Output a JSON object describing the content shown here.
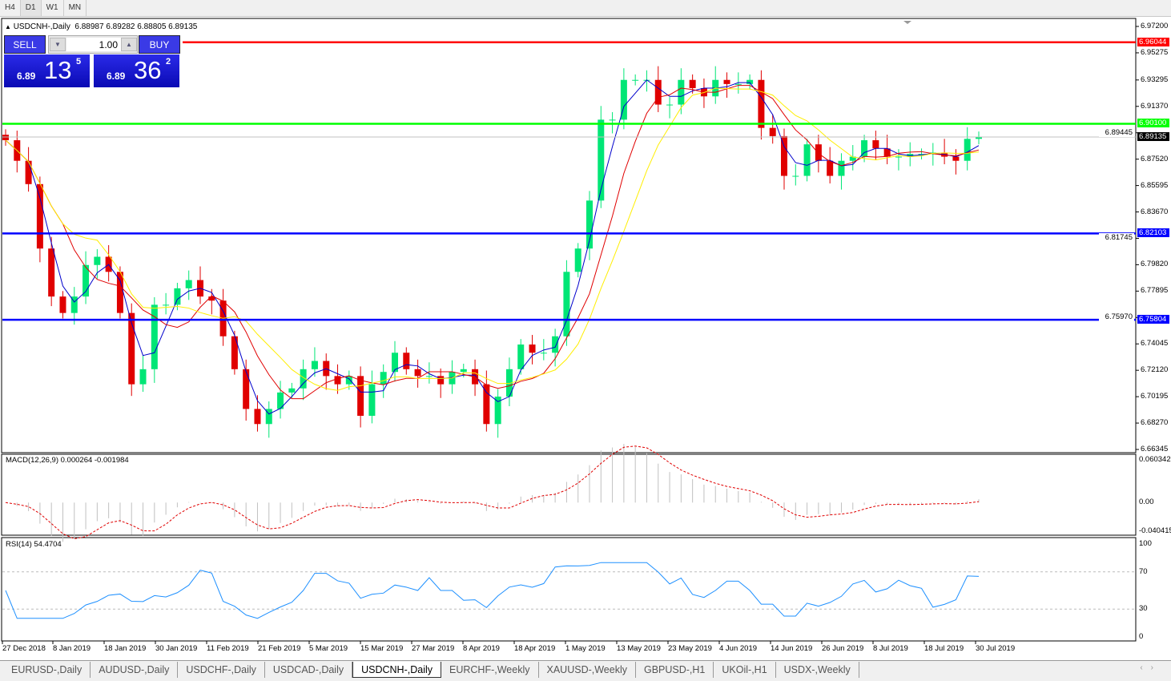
{
  "timeframes": [
    "H4",
    "D1",
    "W1",
    "MN"
  ],
  "active_timeframe": "D1",
  "header": {
    "symbol": "USDCNH-,Daily",
    "ohlc": "6.88987 6.89282 6.88805 6.89135"
  },
  "trade": {
    "sell_label": "SELL",
    "buy_label": "BUY",
    "lot": "1.00",
    "sell_small": "6.89",
    "sell_big": "13",
    "sell_sup": "5",
    "buy_small": "6.89",
    "buy_big": "36",
    "buy_sup": "2"
  },
  "price_axis": [
    "6.97200",
    "6.95275",
    "6.93295",
    "6.91370",
    "6.89445",
    "6.87520",
    "6.85595",
    "6.83670",
    "6.81745",
    "6.79820",
    "6.77895",
    "6.75970",
    "6.74045",
    "6.72120",
    "6.70195",
    "6.68270",
    "6.66345"
  ],
  "levels": [
    {
      "price": "6.96044",
      "color": "#ff0000"
    },
    {
      "price": "6.90100",
      "color": "#00ff00"
    },
    {
      "price": "6.82103",
      "color": "#0000ff"
    },
    {
      "price": "6.75804",
      "color": "#0000ff"
    }
  ],
  "bid": {
    "price": "6.89135",
    "color": "#000000"
  },
  "colors": {
    "bull": "#00e676",
    "bear": "#e00000",
    "ma_fast": "#0000cc",
    "ma_mid": "#e00000",
    "ma_slow": "#ffee00",
    "macd_hist": "#c0c0c0",
    "macd_signal": "#e00000",
    "rsi": "#1e90ff"
  },
  "macd": {
    "label": "MACD(12,26,9) 0.000264 -0.001984",
    "axis": [
      "0.060342",
      "0.00",
      "-0.040415"
    ],
    "range": [
      -0.040415,
      0.060342
    ]
  },
  "rsi": {
    "label": "RSI(14) 54.4704",
    "axis": [
      "100",
      "70",
      "30",
      "0"
    ]
  },
  "date_axis": [
    "27 Dec 2018",
    "8 Jan 2019",
    "18 Jan 2019",
    "30 Jan 2019",
    "11 Feb 2019",
    "21 Feb 2019",
    "5 Mar 2019",
    "15 Mar 2019",
    "27 Mar 2019",
    "8 Apr 2019",
    "18 Apr 2019",
    "1 May 2019",
    "13 May 2019",
    "23 May 2019",
    "4 Jun 2019",
    "14 Jun 2019",
    "26 Jun 2019",
    "8 Jul 2019",
    "18 Jul 2019",
    "30 Jul 2019"
  ],
  "tabs": [
    "EURUSD-,Daily",
    "AUDUSD-,Daily",
    "USDCHF-,Daily",
    "USDCAD-,Daily",
    "USDCNH-,Daily",
    "EURCHF-,Weekly",
    "XAUUSD-,Weekly",
    "GBPUSD-,H1",
    "UKOil-,H1",
    "USDX-,Weekly"
  ],
  "active_tab": "USDCNH-,Daily",
  "chart_data": {
    "type": "candlestick",
    "price_range": [
      6.66345,
      6.972
    ],
    "closes": [
      6.889,
      6.874,
      6.857,
      6.81,
      6.775,
      6.763,
      6.775,
      6.798,
      6.804,
      6.793,
      6.763,
      6.711,
      6.722,
      6.769,
      6.769,
      6.781,
      6.787,
      6.775,
      6.772,
      6.746,
      6.722,
      6.693,
      6.682,
      6.693,
      6.705,
      6.708,
      6.722,
      6.728,
      6.717,
      6.711,
      6.717,
      6.688,
      6.711,
      6.72,
      6.734,
      6.722,
      6.717,
      6.717,
      6.711,
      6.72,
      6.722,
      6.711,
      6.682,
      6.702,
      6.722,
      6.74,
      6.734,
      6.734,
      6.746,
      6.793,
      6.81,
      6.845,
      6.904,
      6.904,
      6.933,
      6.933,
      6.933,
      6.915,
      6.915,
      6.933,
      6.927,
      6.921,
      6.933,
      6.93,
      6.93,
      6.933,
      6.898,
      6.892,
      6.863,
      6.863,
      6.886,
      6.874,
      6.863,
      6.874,
      6.877,
      6.889,
      6.883,
      6.877,
      6.877,
      6.879,
      6.879,
      6.88,
      6.877,
      6.874,
      6.89,
      6.89135
    ]
  }
}
